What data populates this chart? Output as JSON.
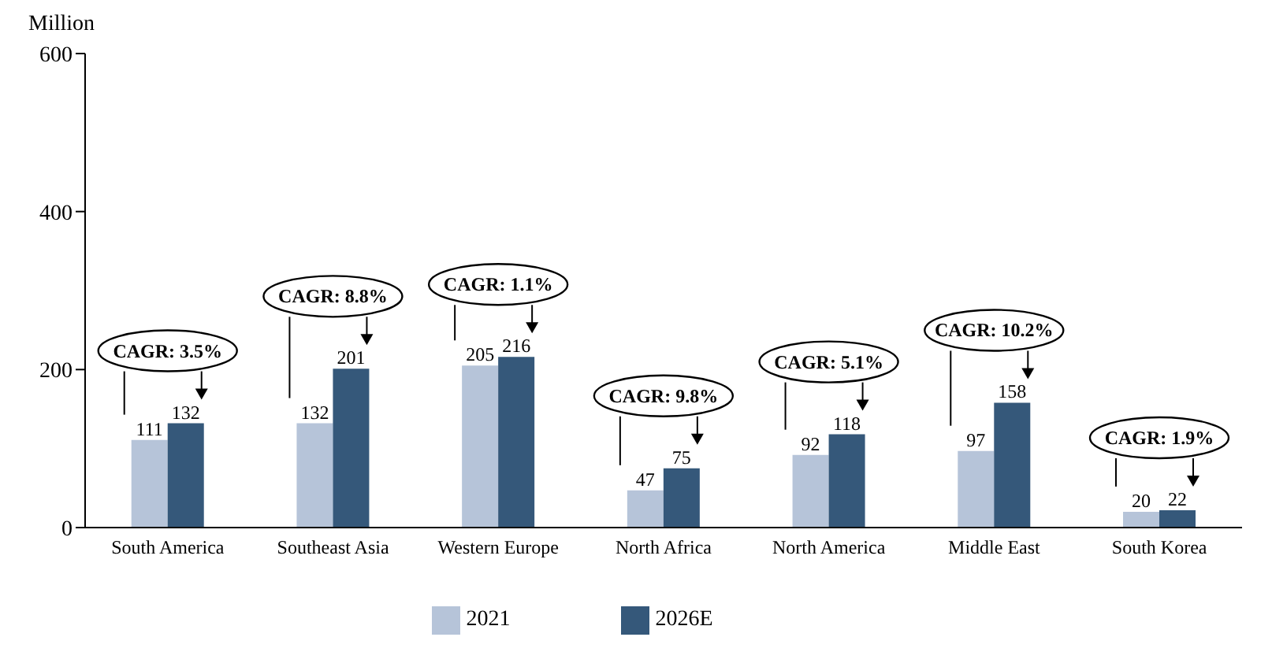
{
  "chart_data": {
    "type": "bar",
    "ylabel": "Million",
    "categories": [
      "South America",
      "Southeast Asia",
      "Western Europe",
      "North Africa",
      "North America",
      "Middle East",
      "South Korea"
    ],
    "series": [
      {
        "name": "2021",
        "color": "#b6c4d9",
        "values": [
          111,
          132,
          205,
          47,
          92,
          97,
          20
        ]
      },
      {
        "name": "2026E",
        "color": "#35587a",
        "values": [
          132,
          201,
          216,
          75,
          118,
          158,
          22
        ]
      }
    ],
    "ylim": [
      0,
      600
    ],
    "yticks": [
      0,
      200,
      400,
      600
    ],
    "grid": false,
    "legend": "bottom",
    "data_labels": true,
    "annotations": [
      "CAGR: 3.5%",
      "CAGR: 8.8%",
      "CAGR: 1.1%",
      "CAGR: 9.8%",
      "CAGR: 5.1%",
      "CAGR: 10.2%",
      "CAGR: 1.9%"
    ]
  }
}
